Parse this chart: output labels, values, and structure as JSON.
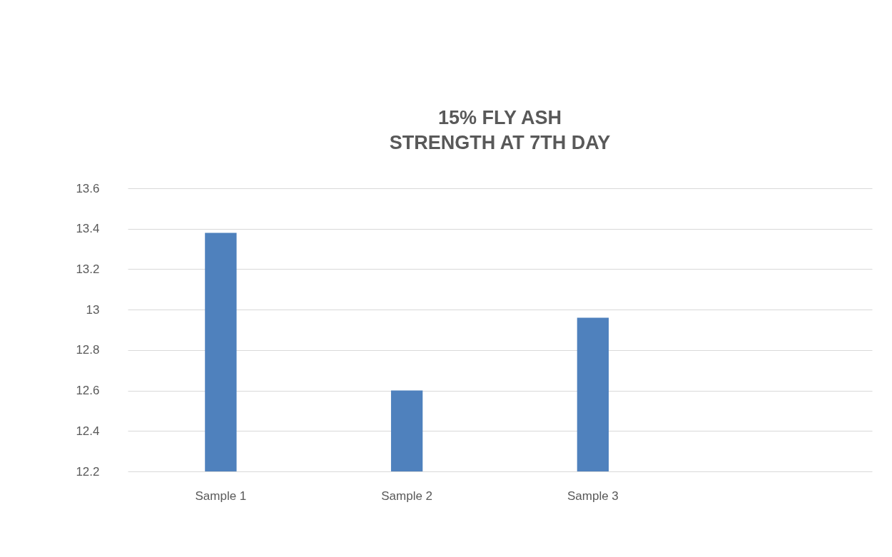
{
  "chart_data": {
    "type": "bar",
    "title": "15% FLY ASH",
    "subtitle": "STRENGTH AT 7TH DAY",
    "categories": [
      "Sample 1",
      "Sample 2",
      "Sample 3",
      null
    ],
    "values": [
      13.38,
      12.6,
      12.96,
      null
    ],
    "color": "#4f81bd",
    "ylim": [
      12.2,
      13.6
    ],
    "yticks": [
      12.2,
      12.4,
      12.6,
      12.8,
      13,
      13.2,
      13.4,
      13.6
    ],
    "grid": "y"
  }
}
